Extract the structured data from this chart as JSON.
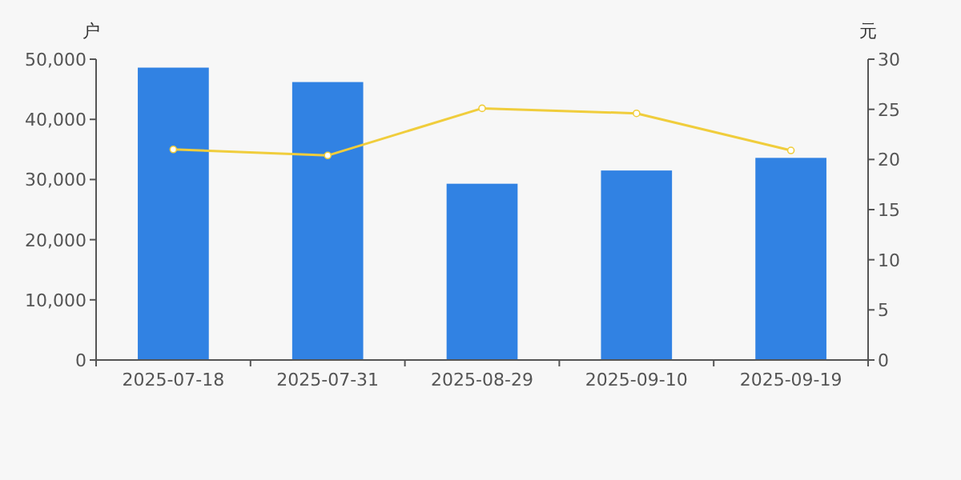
{
  "chart_data": {
    "type": "bar",
    "ylabel": "户",
    "y2label": "元",
    "categories": [
      "2025-07-18",
      "2025-07-31",
      "2025-08-29",
      "2025-09-10",
      "2025-09-19"
    ],
    "series": [
      {
        "color": "#3182e3",
        "values": [
          48600,
          46200,
          29300,
          31500,
          33600
        ]
      },
      {
        "type": "line",
        "axis": "y2",
        "color": "#f0cd3c",
        "marker": "circle",
        "values": [
          21.0,
          20.4,
          25.1,
          24.6,
          20.9
        ]
      }
    ],
    "ylim": [
      0,
      50000
    ],
    "yticks": [
      {
        "value": 0,
        "label": "0"
      },
      {
        "value": 10000,
        "label": "10,000"
      },
      {
        "value": 20000,
        "label": "20,000"
      },
      {
        "value": 30000,
        "label": "30,000"
      },
      {
        "value": 40000,
        "label": "40,000"
      },
      {
        "value": 50000,
        "label": "50,000"
      }
    ],
    "y2lim": [
      0,
      30
    ],
    "y2ticks": [
      0,
      5,
      10,
      15,
      20,
      25,
      30
    ],
    "grid": false
  }
}
